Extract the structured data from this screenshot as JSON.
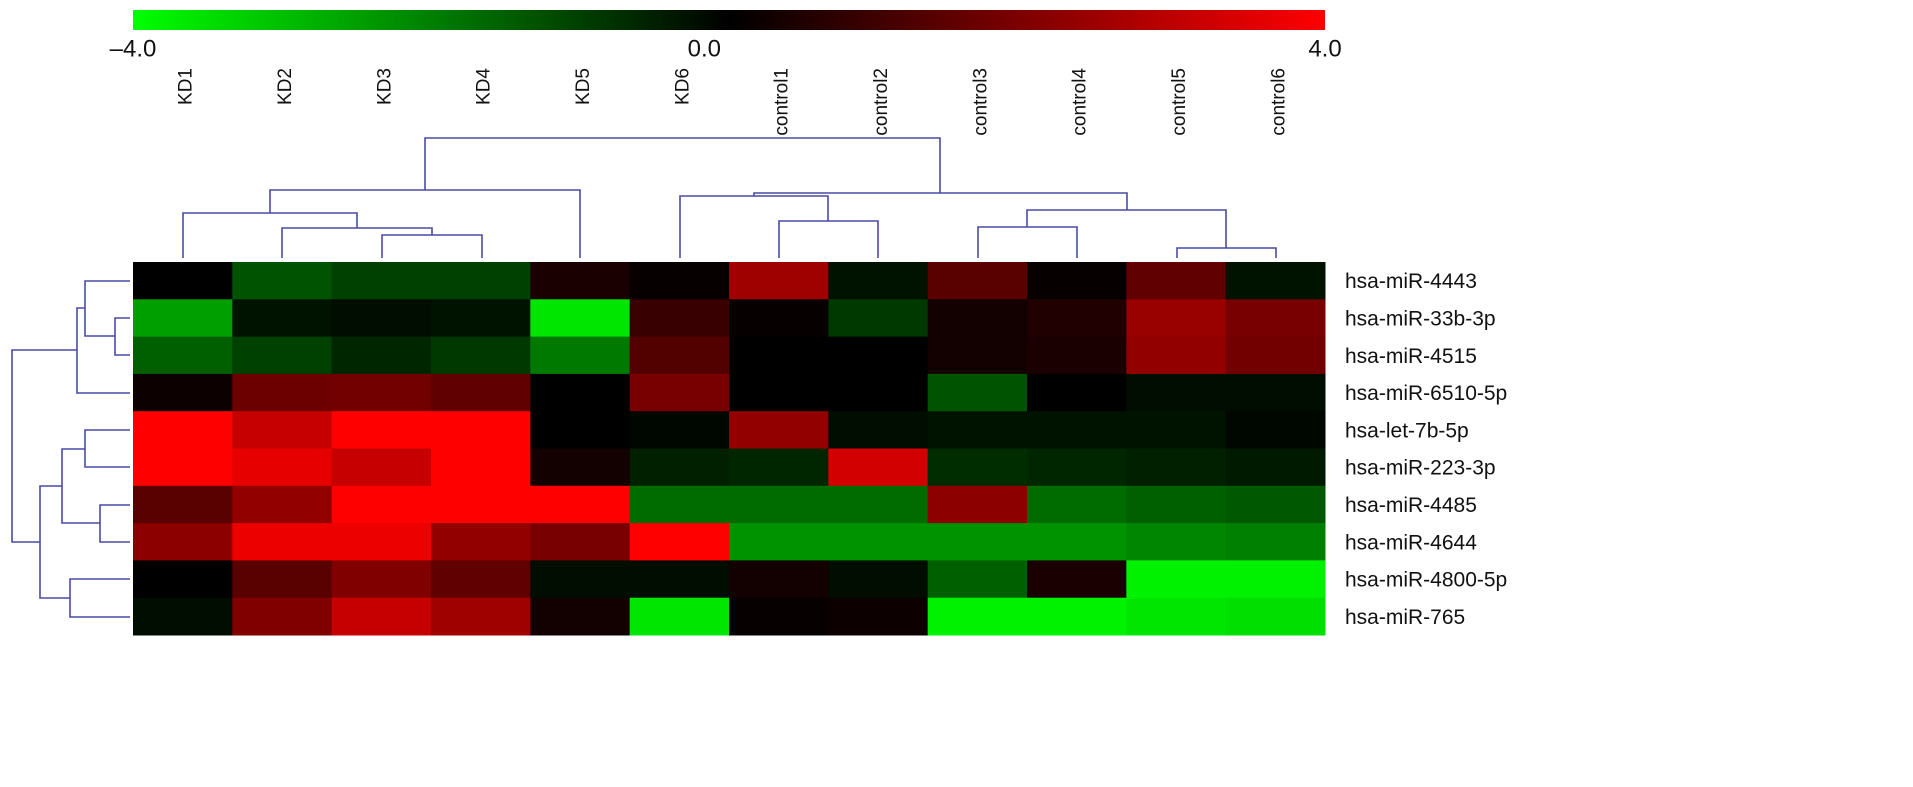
{
  "chart_data": {
    "type": "heatmap",
    "columns": [
      "KD1",
      "KD2",
      "KD3",
      "KD4",
      "KD5",
      "KD6",
      "control1",
      "control2",
      "control3",
      "control4",
      "control5",
      "control6"
    ],
    "rows": [
      "hsa-miR-4443",
      "hsa-miR-33b-3p",
      "hsa-miR-4515",
      "hsa-miR-6510-5p",
      "hsa-let-7b-5p",
      "hsa-miR-223-3p",
      "hsa-miR-4485",
      "hsa-miR-4644",
      "hsa-miR-4800-5p",
      "hsa-miR-765"
    ],
    "values": [
      [
        0,
        -1.3,
        -1.0,
        -1.0,
        0.4,
        0.1,
        2.5,
        -0.3,
        1.4,
        0.1,
        1.5,
        -0.3
      ],
      [
        -2.5,
        -0.3,
        -0.2,
        -0.3,
        -3.6,
        0.9,
        0.1,
        -0.9,
        0.3,
        0.5,
        2.4,
        1.9
      ],
      [
        -1.5,
        -1.0,
        -0.6,
        -0.9,
        -1.9,
        1.3,
        0,
        0,
        0.3,
        0.4,
        2.3,
        1.8
      ],
      [
        0.2,
        1.7,
        1.8,
        1.5,
        0,
        1.9,
        0,
        0,
        -1.3,
        0,
        -0.2,
        -0.2
      ],
      [
        4.0,
        3.1,
        4.0,
        4.0,
        0,
        -0.1,
        2.3,
        -0.2,
        -0.3,
        -0.3,
        -0.3,
        -0.1
      ],
      [
        4.0,
        3.6,
        3.1,
        4.0,
        0.3,
        -0.5,
        -0.6,
        3.3,
        -0.7,
        -0.6,
        -0.5,
        -0.4
      ],
      [
        1.4,
        2.3,
        4.0,
        4.0,
        4.0,
        -1.7,
        -1.7,
        -1.7,
        2.2,
        -1.7,
        -1.5,
        -1.4
      ],
      [
        2.2,
        3.7,
        3.7,
        2.3,
        1.9,
        4.0,
        -2.3,
        -2.3,
        -2.3,
        -2.3,
        -2.1,
        -2.0
      ],
      [
        0,
        1.4,
        2.0,
        1.5,
        -0.2,
        -0.2,
        0.3,
        -0.2,
        -1.5,
        0.4,
        -3.8,
        -3.8
      ],
      [
        -0.2,
        2.0,
        3.1,
        2.5,
        0.3,
        -3.6,
        0.1,
        0.2,
        -3.8,
        -3.8,
        -3.6,
        -3.5
      ]
    ],
    "clim": [
      -4,
      4
    ],
    "colors": {
      "low": "#00ff00",
      "mid": "#000000",
      "high": "#ff0000"
    },
    "colorbar_ticks": [
      {
        "value": -4,
        "label": "–4.0"
      },
      {
        "value": 0,
        "label": "0.0"
      },
      {
        "value": 4,
        "label": "4.0"
      }
    ]
  }
}
